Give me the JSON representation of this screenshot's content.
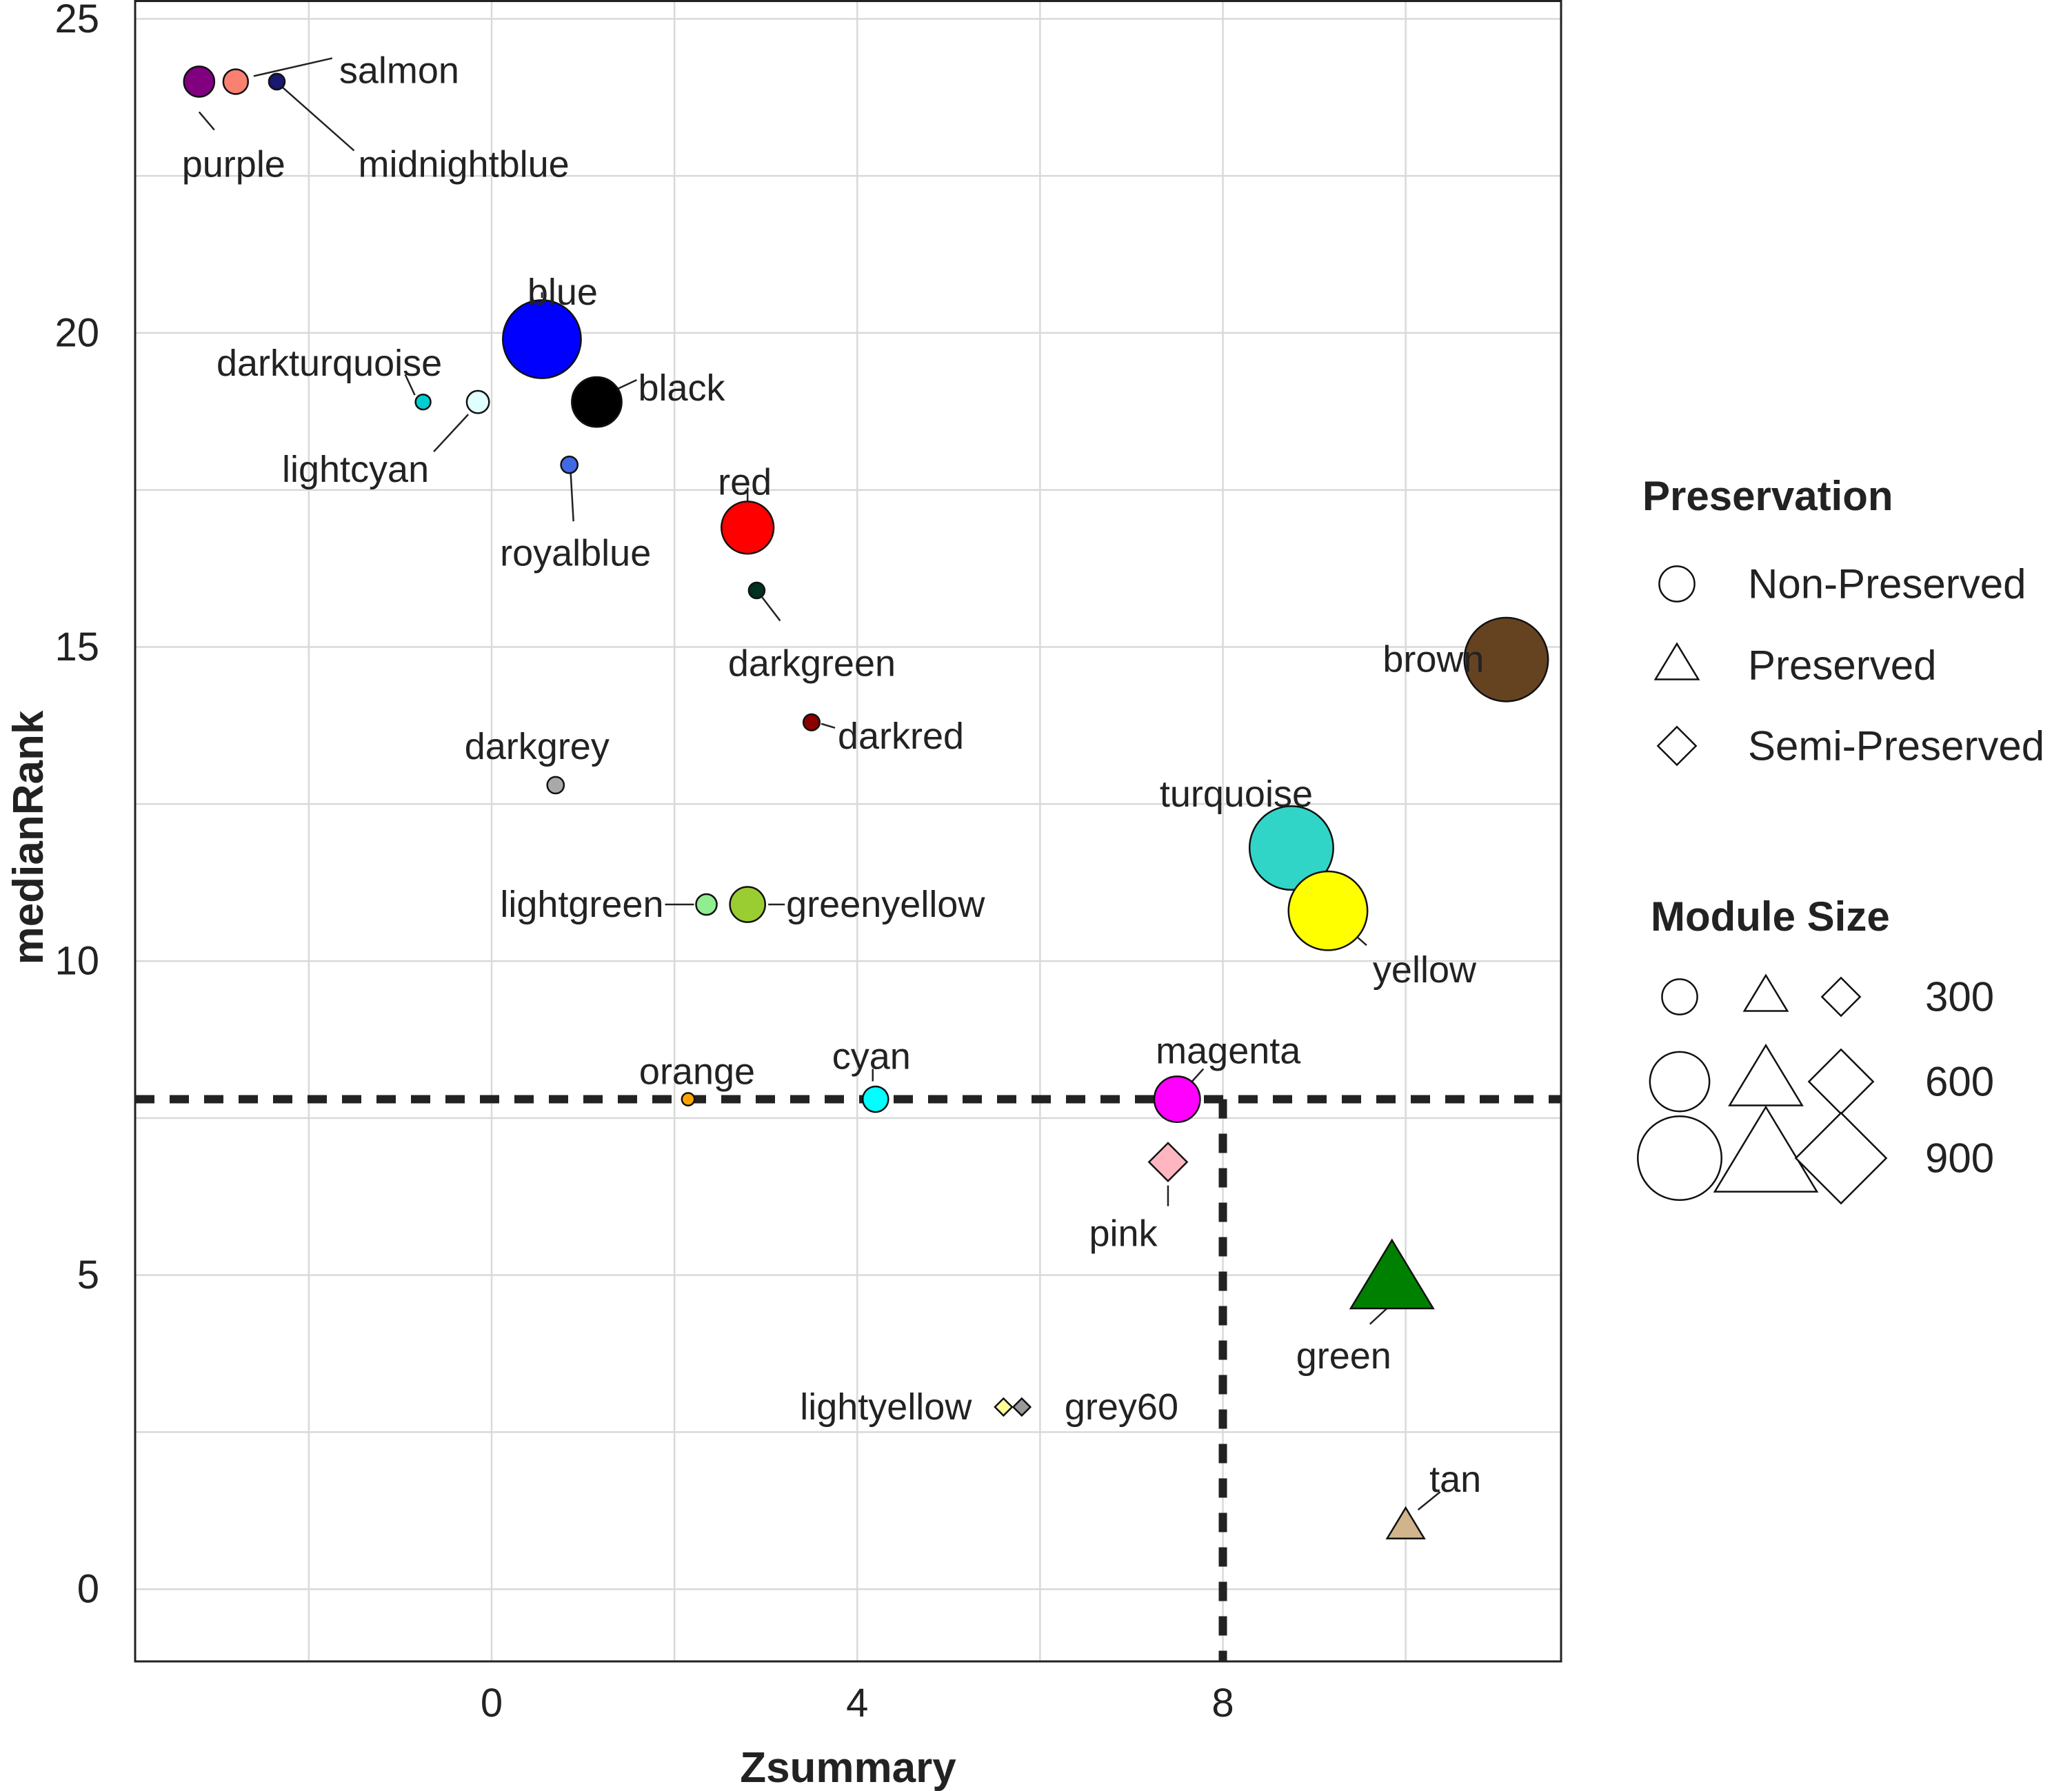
{
  "chart_data": {
    "type": "scatter",
    "xlabel": "Zsummary",
    "ylabel": "medianRank",
    "xlim": [
      -3.9,
      11.7
    ],
    "ylim": [
      -1.15,
      25.3
    ],
    "xticks": [
      0,
      4,
      8
    ],
    "yticks": [
      0,
      5,
      10,
      15,
      20,
      25
    ],
    "x_minor_gridlines": [
      -2,
      2,
      6,
      10
    ],
    "y_minor_gridlines": [
      2.5,
      7.5,
      12.5,
      17.5,
      22.5
    ],
    "reference_lines": {
      "x": 8,
      "y": 7.8
    },
    "points": [
      {
        "label": "purple",
        "x": -3.2,
        "y": 24,
        "size": 240,
        "preservation": "Non-Preserved",
        "color": "#800080"
      },
      {
        "label": "salmon",
        "x": -2.8,
        "y": 24,
        "size": 170,
        "preservation": "Non-Preserved",
        "color": "#fa8072"
      },
      {
        "label": "midnightblue",
        "x": -2.35,
        "y": 24,
        "size": 60,
        "preservation": "Non-Preserved",
        "color": "#191970"
      },
      {
        "label": "blue",
        "x": 0.55,
        "y": 19.9,
        "size": 830,
        "preservation": "Non-Preserved",
        "color": "#0000ff"
      },
      {
        "label": "black",
        "x": 1.15,
        "y": 18.9,
        "size": 480,
        "preservation": "Non-Preserved",
        "color": "#000000"
      },
      {
        "label": "darkturquoise",
        "x": -0.75,
        "y": 18.9,
        "size": 50,
        "preservation": "Non-Preserved",
        "color": "#00ced1"
      },
      {
        "label": "lightcyan",
        "x": -0.15,
        "y": 18.9,
        "size": 140,
        "preservation": "Non-Preserved",
        "color": "#e0ffff"
      },
      {
        "label": "royalblue",
        "x": 0.85,
        "y": 17.9,
        "size": 70,
        "preservation": "Non-Preserved",
        "color": "#4169e1"
      },
      {
        "label": "red",
        "x": 2.8,
        "y": 16.9,
        "size": 510,
        "preservation": "Non-Preserved",
        "color": "#ff0000"
      },
      {
        "label": "darkgreen",
        "x": 2.9,
        "y": 15.9,
        "size": 60,
        "preservation": "Non-Preserved",
        "color": "#003020"
      },
      {
        "label": "darkred",
        "x": 3.5,
        "y": 13.8,
        "size": 65,
        "preservation": "Non-Preserved",
        "color": "#8b0000"
      },
      {
        "label": "darkgrey",
        "x": 0.7,
        "y": 12.8,
        "size": 70,
        "preservation": "Non-Preserved",
        "color": "#a9a9a9"
      },
      {
        "label": "lightgreen",
        "x": 2.35,
        "y": 10.9,
        "size": 120,
        "preservation": "Non-Preserved",
        "color": "#90ee90"
      },
      {
        "label": "greenyellow",
        "x": 2.8,
        "y": 10.9,
        "size": 300,
        "preservation": "Non-Preserved",
        "color": "#9acd32"
      },
      {
        "label": "orange",
        "x": 2.15,
        "y": 7.8,
        "size": 20,
        "preservation": "Non-Preserved",
        "color": "#ffa500"
      },
      {
        "label": "cyan",
        "x": 4.2,
        "y": 7.8,
        "size": 180,
        "preservation": "Non-Preserved",
        "color": "#00ffff"
      },
      {
        "label": "magenta",
        "x": 7.5,
        "y": 7.8,
        "size": 430,
        "preservation": "Non-Preserved",
        "color": "#ff00ff"
      },
      {
        "label": "pink",
        "x": 7.4,
        "y": 6.8,
        "size": 300,
        "preservation": "Semi-Preserved",
        "color": "#ffb6c1"
      },
      {
        "label": "brown",
        "x": 11.1,
        "y": 14.8,
        "size": 900,
        "preservation": "Non-Preserved",
        "color": "#654321"
      },
      {
        "label": "turquoise",
        "x": 8.75,
        "y": 11.8,
        "size": 900,
        "preservation": "Non-Preserved",
        "color": "#30d5c8"
      },
      {
        "label": "yellow",
        "x": 9.15,
        "y": 10.8,
        "size": 840,
        "preservation": "Non-Preserved",
        "color": "#ffff00"
      },
      {
        "label": "green",
        "x": 9.85,
        "y": 4.9,
        "size": 700,
        "preservation": "Preserved",
        "color": "#008000"
      },
      {
        "label": "lightyellow",
        "x": 5.6,
        "y": 2.9,
        "size": 60,
        "preservation": "Semi-Preserved",
        "color": "#ffff99"
      },
      {
        "label": "grey60",
        "x": 5.8,
        "y": 2.9,
        "size": 60,
        "preservation": "Semi-Preserved",
        "color": "#999999"
      },
      {
        "label": "tan",
        "x": 10.0,
        "y": 1.0,
        "size": 240,
        "preservation": "Preserved",
        "color": "#d2b48c"
      }
    ],
    "legends": {
      "shape_title": "Preservation",
      "shape_items": [
        "Non-Preserved",
        "Preserved",
        "Semi-Preserved"
      ],
      "size_title": "Module Size",
      "size_items": [
        300,
        600,
        900
      ]
    }
  }
}
